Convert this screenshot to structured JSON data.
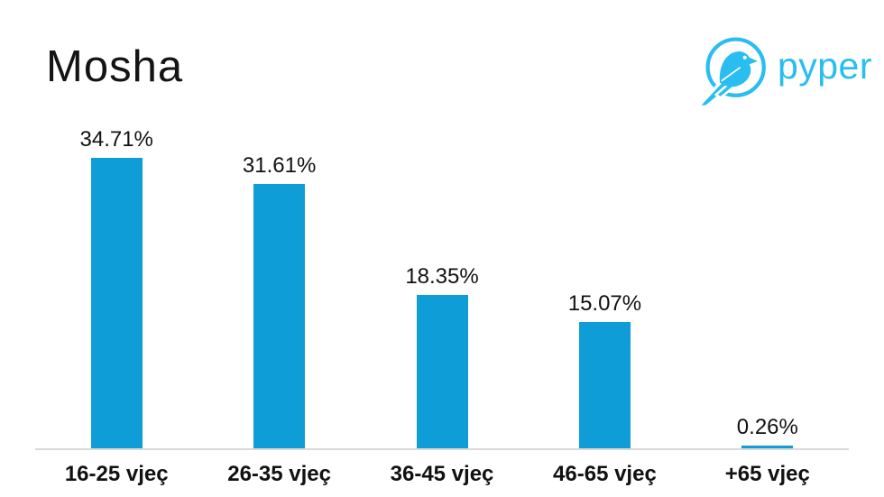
{
  "logo": {
    "brand": "pyper",
    "icon": "pyper-bird-logo",
    "color": "#29BDF0"
  },
  "chart_data": {
    "type": "bar",
    "title": "Mosha",
    "categories": [
      "16-25 vjeç",
      "26-35 vjeç",
      "36-45 vjeç",
      "46-65 vjeç",
      "+65 vjeç"
    ],
    "values": [
      34.71,
      31.61,
      18.35,
      15.07,
      0.26
    ],
    "value_labels": [
      "34.71%",
      "31.61%",
      "18.35%",
      "15.07%",
      "0.26%"
    ],
    "xlabel": "",
    "ylabel": "",
    "ylim": [
      0,
      38.5
    ],
    "grid": false,
    "legend": false,
    "bar_color": "#0F9DD8",
    "axis_line_color": "#D9D9D9",
    "label_color": "#111111",
    "title_color": "#141414"
  }
}
